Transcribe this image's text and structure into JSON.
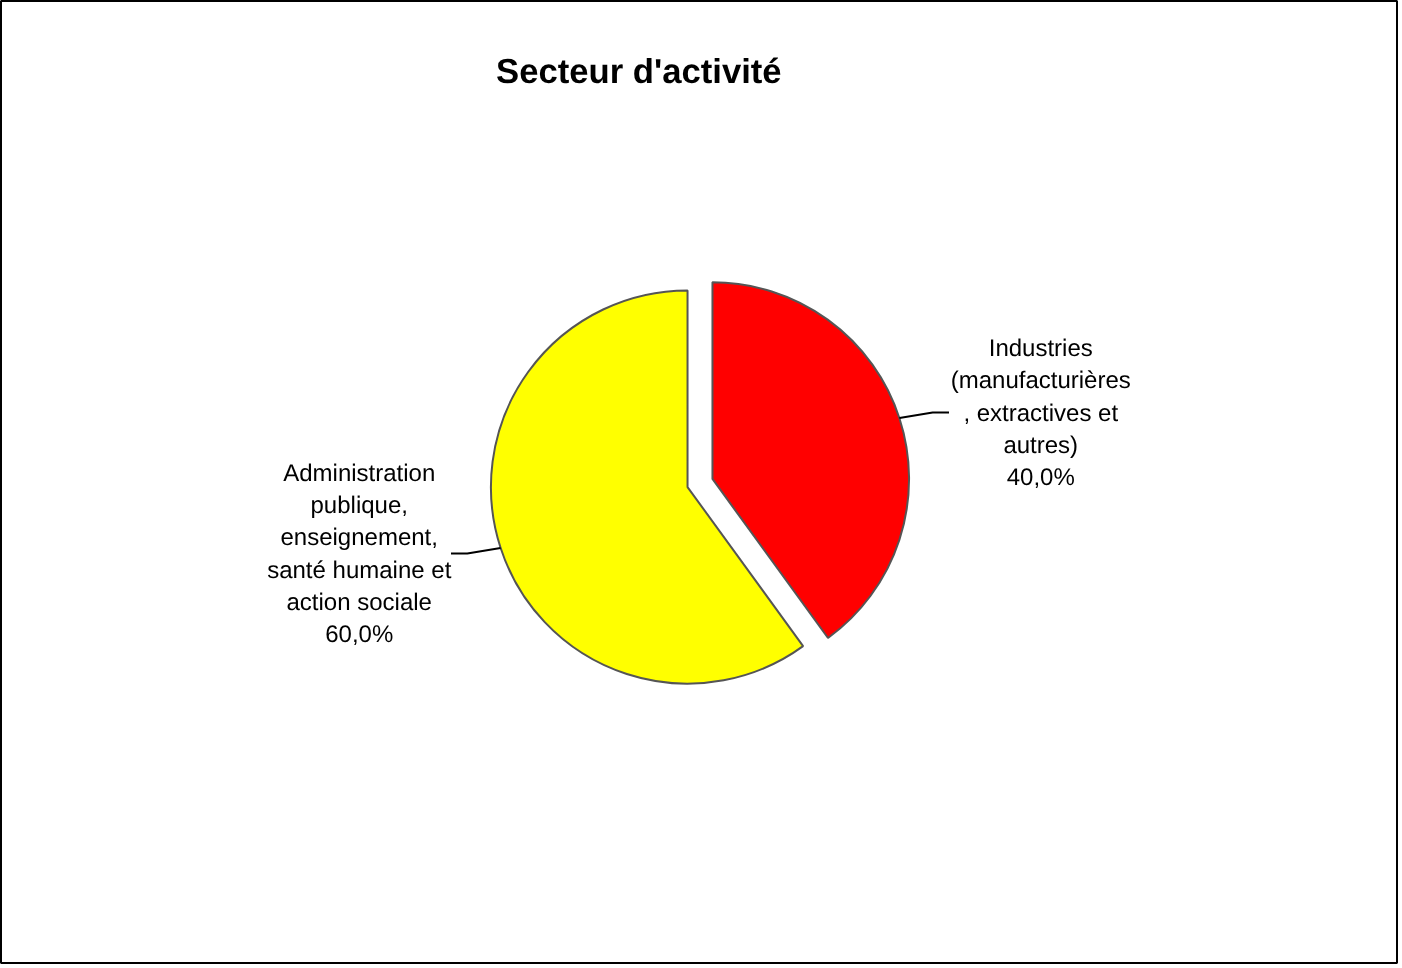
{
  "chart_data": {
    "type": "pie",
    "title": "Secteur d'activité",
    "categories": [
      "Industries (manufacturières , extractives et autres)",
      "Administration publique, enseignement, santé humaine et action sociale"
    ],
    "values": [
      40,
      60
    ],
    "colors": [
      "#ff0000",
      "#ffff00"
    ],
    "value_labels": [
      "40,0%",
      "60,0%"
    ]
  }
}
